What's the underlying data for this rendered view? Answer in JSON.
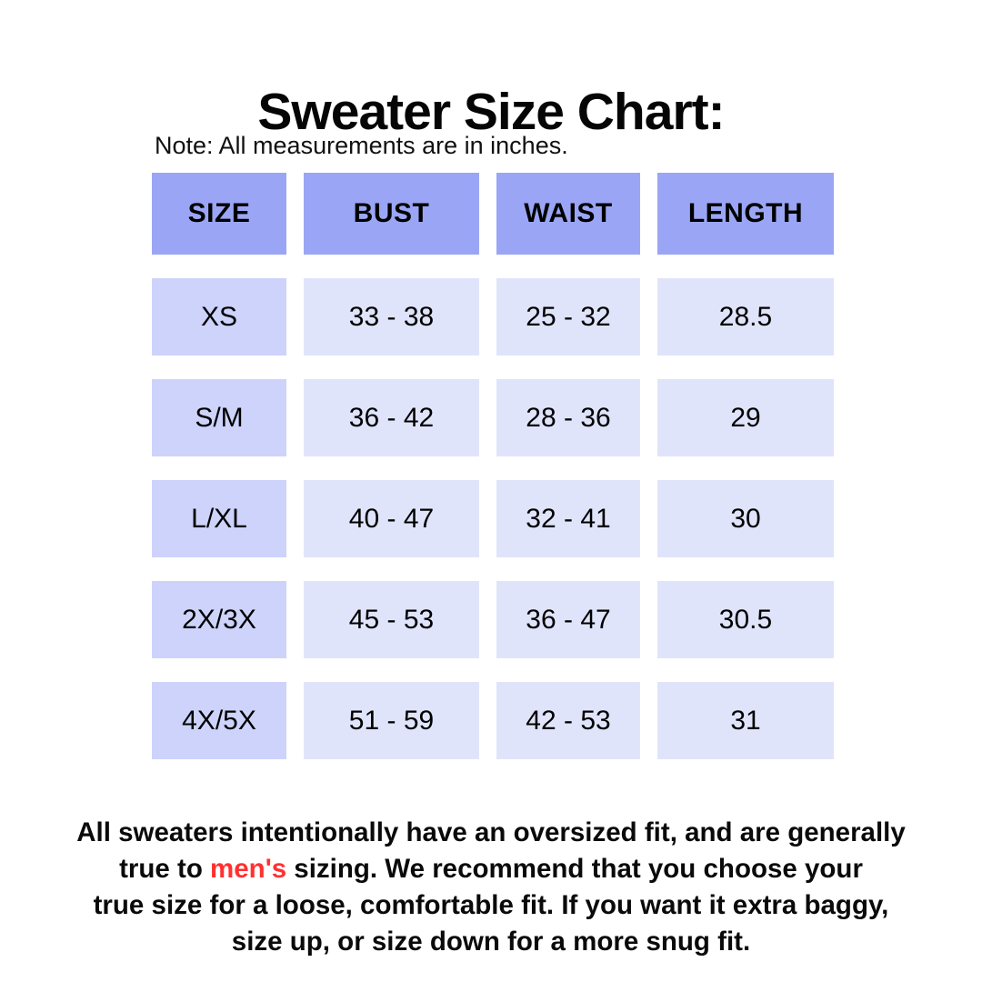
{
  "title": "Sweater Size Chart:",
  "note": "Note: All measurements are in inches.",
  "table": {
    "headers": [
      "SIZE",
      "BUST",
      "WAIST",
      "LENGTH"
    ],
    "rows": [
      {
        "size": "XS",
        "bust": "33 - 38",
        "waist": "25 - 32",
        "length": "28.5"
      },
      {
        "size": "S/M",
        "bust": "36 - 42",
        "waist": "28 - 36",
        "length": "29"
      },
      {
        "size": "L/XL",
        "bust": "40 - 47",
        "waist": "32 - 41",
        "length": "30"
      },
      {
        "size": "2X/3X",
        "bust": "45 - 53",
        "waist": "36 - 47",
        "length": "30.5"
      },
      {
        "size": "4X/5X",
        "bust": "51 - 59",
        "waist": "42 - 53",
        "length": "31"
      }
    ]
  },
  "footer": {
    "part1": "All sweaters intentionally have an oversized fit, and are generally\ntrue to ",
    "highlight": "men's",
    "part3": " sizing. We recommend that you choose your\ntrue size for a loose, comfortable fit. If you want it extra baggy,\nsize up, or size down for a more snug fit."
  },
  "colors": {
    "header_bg": "#9AA6F5",
    "size_cell_bg": "#CDD3FA",
    "data_cell_bg": "#E0E4FA",
    "highlight_red": "#FF3131",
    "text": "#000000",
    "background": "#FFFFFF"
  }
}
